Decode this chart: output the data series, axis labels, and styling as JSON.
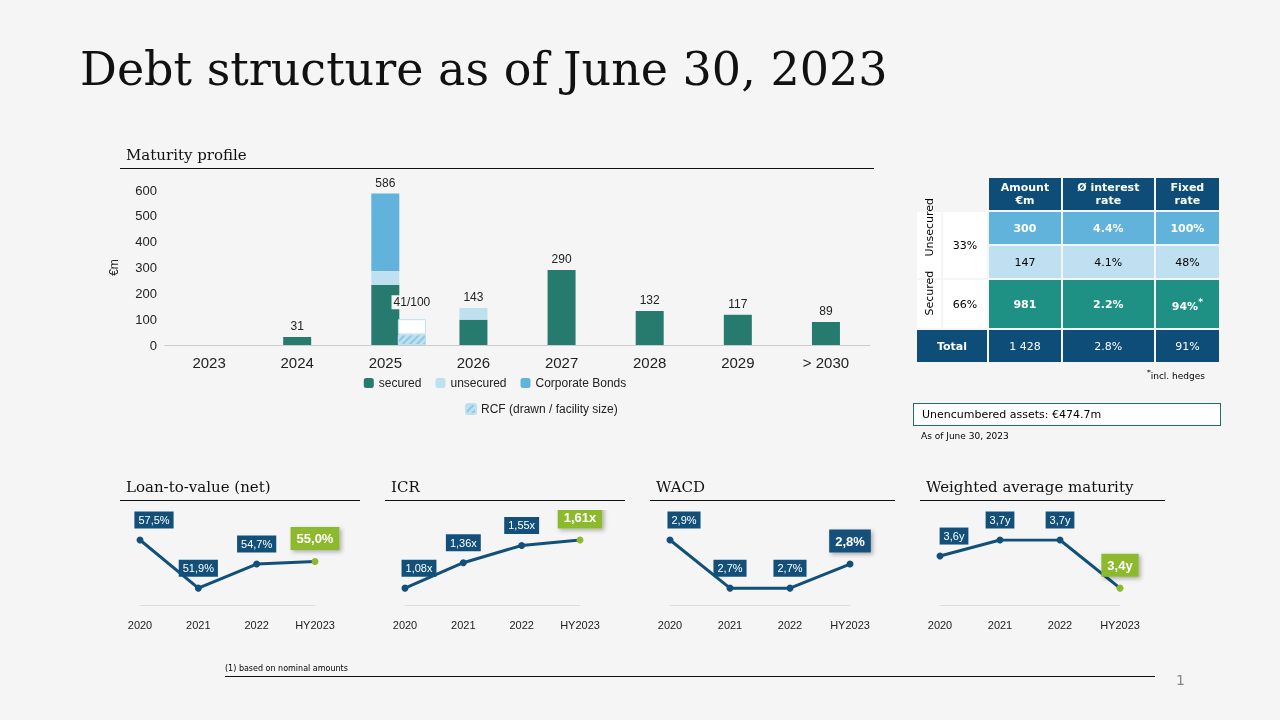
{
  "chart_data": [
    {
      "type": "bar",
      "title": "Debt structure as of June 30, 2023",
      "subtitle": "Maturity profile",
      "ylabel": "€m",
      "categories": [
        "2023",
        "2024",
        "2025",
        "2026",
        "2027",
        "2028",
        "2029",
        "> 2030"
      ],
      "stacked": true,
      "series": [
        {
          "name": "secured",
          "color": "#267a6e",
          "values": [
            null,
            31,
            233,
            98,
            290,
            132,
            117,
            89
          ]
        },
        {
          "name": "unsecured",
          "color": "#bfe0f0",
          "values": [
            null,
            null,
            53,
            45,
            null,
            null,
            null,
            null
          ]
        },
        {
          "name": "Corporate Bonds",
          "color": "#62b3dc",
          "values": [
            null,
            null,
            300,
            null,
            null,
            null,
            null,
            null
          ]
        }
      ],
      "totals": [
        null,
        "31",
        "586",
        "143",
        "290",
        "132",
        "117",
        "89"
      ],
      "ylim": [
        0,
        600
      ],
      "yticks": [
        0,
        100,
        200,
        300,
        400,
        500,
        600
      ],
      "grid": false,
      "legend": "bottom",
      "annotations": [
        "(1) based on nominal amounts",
        "1"
      ]
    },
    {
      "type": "bar",
      "categories": [
        null,
        null,
        null,
        null,
        null,
        null,
        null,
        null
      ],
      "stacked": true,
      "series": [
        {
          "name": "RCF (drawn / facility size)",
          "color": "#bfe0f0",
          "values": [
            null,
            null,
            41,
            null,
            null,
            null,
            null,
            null
          ]
        },
        {
          "color": "#ffffff",
          "values": [
            null,
            null,
            59,
            null,
            null,
            null,
            null,
            null
          ],
          "value_labels": [
            null,
            null,
            "41/100",
            null,
            null,
            null,
            null,
            null
          ]
        }
      ],
      "ylim": [
        0,
        600
      ],
      "grid": false,
      "legend": "bottom"
    },
    {
      "type": "other",
      "annotations": [
        "Amount €m",
        "Ø interest rate",
        "Fixed rate",
        "Unsecured",
        "33%",
        "300",
        "4.4%",
        "100%",
        "147",
        "4.1%",
        "48%",
        "Secured",
        "66%",
        "981",
        "2.2%",
        "94%$^{*}$",
        "Total",
        "1 428",
        "2.8%",
        "91%",
        "$^{*}$incl. hedges",
        "Unencumbered assets: €474.7m",
        "As of June 30, 2023"
      ]
    },
    {
      "type": "line",
      "title": "Loan-to-value (net)",
      "categories": [
        "2020",
        "2021",
        "2022",
        "HY2023"
      ],
      "color": "#12507a",
      "colors": [
        "#12507a",
        "#12507a",
        "#12507a",
        "#8db92e"
      ],
      "values": [
        57.5,
        51.9,
        54.7,
        55.0
      ],
      "value_labels": [
        "57,5%",
        "51,9%",
        "54,7%",
        "55,0%"
      ],
      "marker": "circle",
      "line_style": "solid",
      "grid": false
    },
    {
      "type": "line",
      "title": "ICR",
      "categories": [
        "2020",
        "2021",
        "2022",
        "HY2023"
      ],
      "color": "#12507a",
      "colors": [
        "#12507a",
        "#12507a",
        "#12507a",
        "#8db92e"
      ],
      "values": [
        1.08,
        1.36,
        1.55,
        1.61
      ],
      "value_labels": [
        "1,08x",
        "1,36x",
        "1,55x",
        "1,61x"
      ],
      "marker": "circle",
      "line_style": "solid",
      "grid": false
    },
    {
      "type": "line",
      "title": "WACD",
      "categories": [
        "2020",
        "2021",
        "2022",
        "HY2023"
      ],
      "color": "#12507a",
      "colors": [
        "#12507a",
        "#12507a",
        "#12507a",
        "#12507a"
      ],
      "values": [
        2.9,
        2.7,
        2.7,
        2.8
      ],
      "value_labels": [
        "2,9%",
        "2,7%",
        "2,7%",
        "2,8%"
      ],
      "marker": "circle",
      "line_style": "solid",
      "grid": false
    },
    {
      "type": "line",
      "title": "Weighted average maturity",
      "categories": [
        "2020",
        "2021",
        "2022",
        "HY2023"
      ],
      "color": "#12507a",
      "colors": [
        "#12507a",
        "#12507a",
        "#12507a",
        "#8db92e"
      ],
      "values": [
        3.6,
        3.7,
        3.7,
        3.4
      ],
      "value_labels": [
        "3,6y",
        "3,7y",
        "3,7y",
        "3,4y"
      ],
      "marker": "circle",
      "line_style": "solid",
      "grid": false
    }
  ]
}
